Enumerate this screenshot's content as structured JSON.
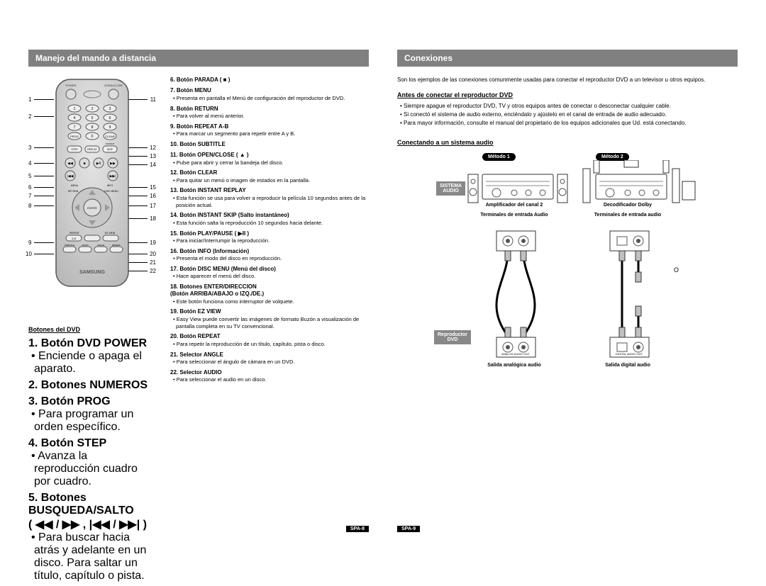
{
  "left": {
    "header": "Manejo del mando a distancia",
    "subHeading": "Botones del DVD",
    "leftNums": [
      "1",
      "2",
      "3",
      "4",
      "5",
      "6",
      "7",
      "8",
      "9",
      "10"
    ],
    "rightNums": [
      "11",
      "12",
      "13",
      "14",
      "15",
      "16",
      "17",
      "18",
      "19",
      "20",
      "21",
      "22"
    ],
    "itemsA": [
      {
        "t": "1. Botón DVD POWER",
        "b": "• Enciende o apaga el aparato."
      },
      {
        "t": "2. Botones NUMEROS"
      },
      {
        "t": "3. Botón PROG",
        "b": "• Para programar un orden específico."
      },
      {
        "t": "4. Botón STEP",
        "b": "• Avanza la reproducción cuadro por cuadro."
      },
      {
        "t": "5. Botones BUSQUEDA/SALTO\n( ◀◀ / ▶▶ , |◀◀ / ▶▶| )",
        "b": "• Para buscar hacia atrás y adelante en un disco. Para saltar un título, capítulo o pista."
      }
    ],
    "itemsB": [
      {
        "t": "6. Botón PARADA ( ■ )"
      },
      {
        "t": "7. Botón MENU",
        "b": "• Presenta en pantalla el Menú de configuración del reproductor de DVD."
      },
      {
        "t": "8. Botón RETURN",
        "b": "• Para volver al menú anterior."
      },
      {
        "t": "9. Botón REPEAT A-B",
        "b": "• Para marcar un segmento para repetir entre A y B."
      },
      {
        "t": "10. Botón SUBTITLE"
      },
      {
        "t": "11. Botón OPEN/CLOSE ( ▲ )",
        "b": "• Pulse para abrir y cerrar la bandeja del disco."
      },
      {
        "t": "12. Botón CLEAR",
        "b": "• Para quitar un menú o imagen de estados en la pantalla."
      },
      {
        "t": "13. Botón INSTANT REPLAY",
        "b": "• Esta función se usa para volver a reproducir la película 10 segundos antes de la posición actual."
      },
      {
        "t": "14. Botón INSTANT SKIP (Salto instantáneo)",
        "b": "• Esta función salta la reproducción 10 segundos hacia delante."
      },
      {
        "t": "15. Botón PLAY/PAUSE ( ▶II )",
        "b": "• Para iniciar/Interrumpir la reproducción."
      },
      {
        "t": "16. Botón INFO (Información)",
        "b": "• Presenta el modo del disco en reproducción."
      },
      {
        "t": "17. Botón DISC MENU (Menú del disco)",
        "b": "• Hace aparecer el menú del disco."
      },
      {
        "t": "18. Botones ENTER/DIRECCION\n(Botón ARRIBA/ABAJO o IZQ./DE.)",
        "b": "• Este botón funciona como interruptor de volquete."
      },
      {
        "t": "19. Botón EZ VIEW",
        "b": "• Easy View puede convertir las imágenes de formato Buzón a visualización de pantalla completa en su TV convencional."
      },
      {
        "t": "20. Botón REPEAT",
        "b": "• Para repetir la reproducción de un título, capítulo, pista o disco."
      },
      {
        "t": "21. Selector ANGLE",
        "b": "• Para seleccionar el ángulo de cámara en un DVD."
      },
      {
        "t": "22. Selector AUDIO",
        "b": "• Para seleccionar el audio en un disco."
      }
    ],
    "pageNum": "SPA-8"
  },
  "right": {
    "header": "Conexiones",
    "intro": "Son los ejemplos de las conexiones comunmente usadas para conectar el reproductor DVD a un televisor u otros equipos.",
    "sub1": "Antes de conectar el reproductor DVD",
    "bullets": [
      "Siempre apague el reproductor DVD, TV y otros equipos antes de conectar o desconectar cualquier cable.",
      "Si conectó el sistema de audio externo, enciéndalo y ajústelo en el canal de entrada de audio adecuado.",
      "Para mayor información, consulte el manual del propietario de los equipos adicionales que Ud. está conectando."
    ],
    "sub2": "Conectando a un sistema audio",
    "method1": "Método 1",
    "method2": "Método 2",
    "sistemaAudio": "SISTEMA\nAUDIO",
    "amp1": "Amplificador del canal 2",
    "amp2": "Decodificador Dolby",
    "term1": "Terminales de entrada Audio",
    "term2": "Terminales de entrada audio",
    "reproductor": "Reproductor\nDVD",
    "out1": "Salida analógica audio",
    "out2": "Salida digital audio",
    "o": "O",
    "pageNum": "SPA-9"
  },
  "remote": {
    "body": "#cfcfcf",
    "outline": "#555555",
    "brand": "SAMSUNG"
  },
  "colors": {
    "headerBg": "#808080",
    "headerFg": "#ffffff",
    "pillBg": "#000000",
    "labelBg": "#888888"
  }
}
